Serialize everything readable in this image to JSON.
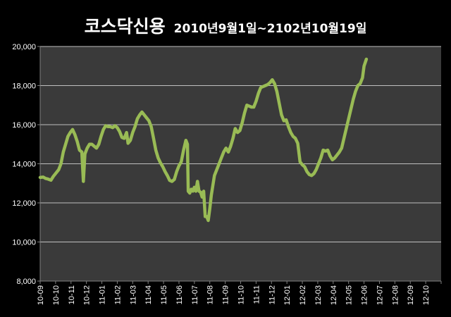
{
  "chart_data": {
    "type": "line",
    "title": "코스닥신용",
    "subtitle": "2010년9월1일~2102년10월19일",
    "xlabel": "",
    "ylabel": "",
    "ylim": [
      8000,
      20000
    ],
    "yticks": [
      8000,
      10000,
      12000,
      14000,
      16000,
      18000,
      20000
    ],
    "ytick_labels": [
      "8,000",
      "10,000",
      "12,000",
      "14,000",
      "16,000",
      "18,000",
      "20,000"
    ],
    "xticks": [
      "10-09",
      "10-10",
      "10-11",
      "10-12",
      "11-01",
      "11-02",
      "11-03",
      "11-04",
      "11-05",
      "11-06",
      "11-07",
      "11-08",
      "11-09",
      "11-10",
      "11-11",
      "11-12",
      "12-01",
      "12-02",
      "12-03",
      "12-04",
      "12-05",
      "12-06",
      "12-07",
      "12-08",
      "12-09",
      "12-10"
    ],
    "grid": true,
    "legend": "none",
    "colors": {
      "background": "#000000",
      "plot_area": "#3a3a3a",
      "gridline": "#bfbfbf",
      "line": "#99bb55",
      "text": "#ffffff"
    },
    "series": [
      {
        "points": [
          [
            0.0,
            13300
          ],
          [
            0.2,
            13320
          ],
          [
            0.35,
            13250
          ],
          [
            0.5,
            13220
          ],
          [
            0.7,
            13160
          ],
          [
            0.85,
            13350
          ],
          [
            1.0,
            13500
          ],
          [
            1.2,
            13700
          ],
          [
            1.35,
            14000
          ],
          [
            1.5,
            14600
          ],
          [
            1.65,
            15000
          ],
          [
            1.8,
            15400
          ],
          [
            1.95,
            15600
          ],
          [
            2.1,
            15750
          ],
          [
            2.25,
            15500
          ],
          [
            2.4,
            15150
          ],
          [
            2.55,
            14700
          ],
          [
            2.7,
            14600
          ],
          [
            2.8,
            13100
          ],
          [
            2.9,
            14500
          ],
          [
            3.05,
            14800
          ],
          [
            3.2,
            15000
          ],
          [
            3.35,
            15000
          ],
          [
            3.5,
            14900
          ],
          [
            3.65,
            14800
          ],
          [
            3.8,
            15000
          ],
          [
            3.95,
            15400
          ],
          [
            4.1,
            15750
          ],
          [
            4.25,
            15950
          ],
          [
            4.4,
            15900
          ],
          [
            4.55,
            15900
          ],
          [
            4.7,
            15850
          ],
          [
            4.85,
            15950
          ],
          [
            5.0,
            15850
          ],
          [
            5.15,
            15650
          ],
          [
            5.3,
            15350
          ],
          [
            5.45,
            15300
          ],
          [
            5.6,
            15600
          ],
          [
            5.7,
            15050
          ],
          [
            5.85,
            15200
          ],
          [
            6.0,
            15600
          ],
          [
            6.15,
            15900
          ],
          [
            6.3,
            16300
          ],
          [
            6.45,
            16500
          ],
          [
            6.6,
            16650
          ],
          [
            6.75,
            16500
          ],
          [
            6.9,
            16350
          ],
          [
            7.05,
            16200
          ],
          [
            7.2,
            15900
          ],
          [
            7.35,
            15300
          ],
          [
            7.5,
            14700
          ],
          [
            7.65,
            14300
          ],
          [
            7.8,
            14050
          ],
          [
            7.95,
            13850
          ],
          [
            8.1,
            13600
          ],
          [
            8.25,
            13400
          ],
          [
            8.4,
            13150
          ],
          [
            8.55,
            13100
          ],
          [
            8.7,
            13200
          ],
          [
            8.85,
            13600
          ],
          [
            9.0,
            13900
          ],
          [
            9.15,
            14100
          ],
          [
            9.3,
            14700
          ],
          [
            9.45,
            15200
          ],
          [
            9.55,
            15000
          ],
          [
            9.6,
            12600
          ],
          [
            9.7,
            12500
          ],
          [
            9.8,
            12700
          ],
          [
            9.9,
            12600
          ],
          [
            10.0,
            12800
          ],
          [
            10.1,
            12600
          ],
          [
            10.2,
            13100
          ],
          [
            10.3,
            12600
          ],
          [
            10.4,
            12550
          ],
          [
            10.5,
            12300
          ],
          [
            10.6,
            12600
          ],
          [
            10.7,
            11300
          ],
          [
            10.8,
            11300
          ],
          [
            10.9,
            11100
          ],
          [
            11.0,
            11700
          ],
          [
            11.1,
            12400
          ],
          [
            11.2,
            12900
          ],
          [
            11.3,
            13400
          ],
          [
            11.45,
            13700
          ],
          [
            11.6,
            14000
          ],
          [
            11.75,
            14300
          ],
          [
            11.9,
            14600
          ],
          [
            12.05,
            14800
          ],
          [
            12.2,
            14600
          ],
          [
            12.35,
            14900
          ],
          [
            12.5,
            15300
          ],
          [
            12.65,
            15800
          ],
          [
            12.8,
            15600
          ],
          [
            12.95,
            15700
          ],
          [
            13.1,
            16100
          ],
          [
            13.25,
            16600
          ],
          [
            13.4,
            17000
          ],
          [
            13.55,
            16950
          ],
          [
            13.7,
            16900
          ],
          [
            13.85,
            16900
          ],
          [
            14.0,
            17200
          ],
          [
            14.15,
            17600
          ],
          [
            14.3,
            17900
          ],
          [
            14.45,
            17950
          ],
          [
            14.6,
            18000
          ],
          [
            14.75,
            18050
          ],
          [
            14.9,
            18150
          ],
          [
            15.05,
            18300
          ],
          [
            15.2,
            18100
          ],
          [
            15.35,
            17700
          ],
          [
            15.5,
            17100
          ],
          [
            15.65,
            16500
          ],
          [
            15.8,
            16200
          ],
          [
            15.95,
            16250
          ],
          [
            16.1,
            15900
          ],
          [
            16.25,
            15600
          ],
          [
            16.4,
            15400
          ],
          [
            16.55,
            15300
          ],
          [
            16.7,
            15050
          ],
          [
            16.85,
            14100
          ],
          [
            17.0,
            13950
          ],
          [
            17.15,
            13850
          ],
          [
            17.3,
            13600
          ],
          [
            17.45,
            13450
          ],
          [
            17.6,
            13400
          ],
          [
            17.75,
            13500
          ],
          [
            17.9,
            13700
          ],
          [
            18.05,
            14000
          ],
          [
            18.2,
            14300
          ],
          [
            18.35,
            14700
          ],
          [
            18.5,
            14650
          ],
          [
            18.65,
            14700
          ],
          [
            18.8,
            14400
          ],
          [
            18.95,
            14200
          ],
          [
            19.1,
            14300
          ],
          [
            19.25,
            14450
          ],
          [
            19.4,
            14600
          ],
          [
            19.55,
            14800
          ],
          [
            19.7,
            15300
          ],
          [
            19.85,
            15800
          ],
          [
            20.0,
            16300
          ],
          [
            20.15,
            16800
          ],
          [
            20.3,
            17300
          ],
          [
            20.45,
            17700
          ],
          [
            20.6,
            18000
          ],
          [
            20.75,
            18100
          ],
          [
            20.9,
            18400
          ],
          [
            21.0,
            19000
          ],
          [
            21.15,
            19350
          ]
        ]
      }
    ]
  }
}
